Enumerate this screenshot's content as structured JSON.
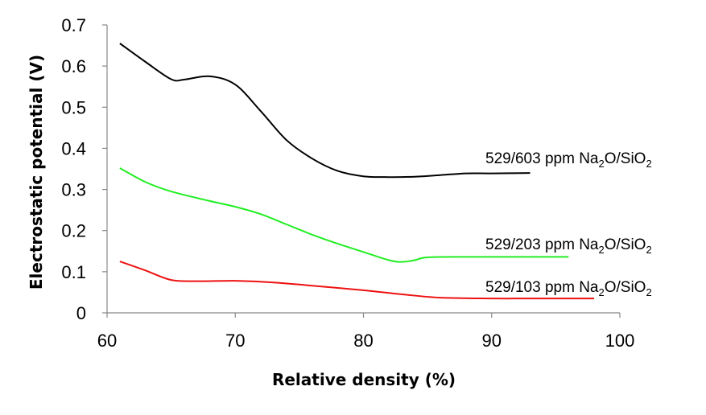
{
  "chart_data": {
    "type": "line",
    "xlabel": "Relative density (%)",
    "ylabel": "Electrostatic potential (V)",
    "xlim": [
      60,
      100
    ],
    "ylim": [
      0,
      0.7
    ],
    "x_ticks": [
      "60",
      "70",
      "80",
      "90",
      "100"
    ],
    "y_ticks": [
      "0",
      "0.1",
      "0.2",
      "0.3",
      "0.4",
      "0.5",
      "0.6",
      "0.7"
    ],
    "grid": false,
    "legend": "none",
    "series": [
      {
        "name_parts": [
          "529/603 ppm Na",
          "2",
          "O/SiO",
          "2"
        ],
        "color": "#000000",
        "points": [
          [
            61,
            0.655
          ],
          [
            63,
            0.61
          ],
          [
            65,
            0.568
          ],
          [
            66,
            0.567
          ],
          [
            68,
            0.575
          ],
          [
            70,
            0.555
          ],
          [
            72,
            0.49
          ],
          [
            74,
            0.42
          ],
          [
            76,
            0.375
          ],
          [
            78,
            0.345
          ],
          [
            80,
            0.332
          ],
          [
            82,
            0.33
          ],
          [
            84,
            0.331
          ],
          [
            86,
            0.335
          ],
          [
            88,
            0.339
          ],
          [
            90,
            0.339
          ],
          [
            93,
            0.34
          ]
        ]
      },
      {
        "name_parts": [
          "529/203 ppm Na",
          "2",
          "O/SiO",
          "2"
        ],
        "color": "#22ee22",
        "points": [
          [
            61,
            0.352
          ],
          [
            63,
            0.318
          ],
          [
            65,
            0.295
          ],
          [
            68,
            0.272
          ],
          [
            70,
            0.258
          ],
          [
            72,
            0.24
          ],
          [
            74,
            0.215
          ],
          [
            76,
            0.19
          ],
          [
            78,
            0.168
          ],
          [
            80,
            0.148
          ],
          [
            82,
            0.128
          ],
          [
            83,
            0.124
          ],
          [
            84,
            0.128
          ],
          [
            85,
            0.135
          ],
          [
            88,
            0.136
          ],
          [
            92,
            0.136
          ],
          [
            96,
            0.136
          ]
        ]
      },
      {
        "name_parts": [
          "529/103 ppm Na",
          "2",
          "O/SiO",
          "2"
        ],
        "color": "#ee1111",
        "points": [
          [
            61,
            0.125
          ],
          [
            63,
            0.103
          ],
          [
            65,
            0.08
          ],
          [
            67,
            0.077
          ],
          [
            70,
            0.078
          ],
          [
            73,
            0.074
          ],
          [
            76,
            0.066
          ],
          [
            80,
            0.055
          ],
          [
            83,
            0.045
          ],
          [
            86,
            0.037
          ],
          [
            90,
            0.035
          ],
          [
            94,
            0.035
          ],
          [
            98,
            0.035
          ]
        ]
      }
    ]
  }
}
